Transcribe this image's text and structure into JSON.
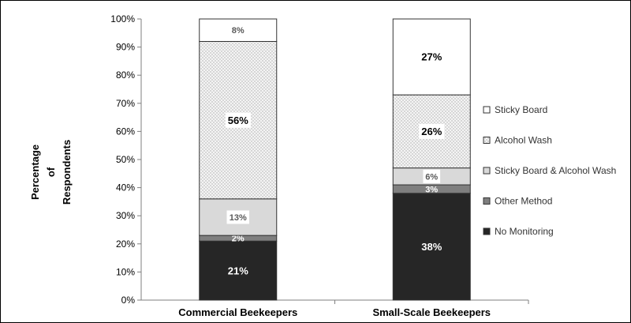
{
  "chart_data": {
    "type": "bar",
    "stacked": true,
    "categories": [
      "Commercial Beekeepers",
      "Small-Scale Beekeepers"
    ],
    "series": [
      {
        "name": "No Monitoring",
        "values": [
          21,
          38
        ],
        "labels": [
          "21%",
          "38%"
        ],
        "color": "#262626",
        "pattern": "solid"
      },
      {
        "name": "Other Method",
        "values": [
          2,
          3
        ],
        "labels": [
          "2%",
          "3%"
        ],
        "color": "#7f7f7f",
        "pattern": "solid"
      },
      {
        "name": "Sticky Board & Alcohol Wash",
        "values": [
          13,
          6
        ],
        "labels": [
          "13%",
          "6%"
        ],
        "color": "#d9d9d9",
        "pattern": "solid"
      },
      {
        "name": "Alcohol Wash",
        "values": [
          56,
          26
        ],
        "labels": [
          "56%",
          "26%"
        ],
        "color": "#eeeeee",
        "pattern": "dots"
      },
      {
        "name": "Sticky Board",
        "values": [
          8,
          27
        ],
        "labels": [
          "8%",
          "27%"
        ],
        "color": "#ffffff",
        "pattern": "solid"
      }
    ],
    "legend_order": [
      "Sticky Board",
      "Alcohol Wash",
      "Sticky Board & Alcohol Wash",
      "Other Method",
      "No Monitoring"
    ],
    "ylabel": [
      "Percentage",
      "of",
      "Respondents"
    ],
    "xlabel": "",
    "title": "",
    "ylim": [
      0,
      100
    ],
    "yticks": [
      "0%",
      "10%",
      "20%",
      "30%",
      "40%",
      "50%",
      "60%",
      "70%",
      "80%",
      "90%",
      "100%"
    ],
    "grid": false,
    "legend_position": "right"
  }
}
